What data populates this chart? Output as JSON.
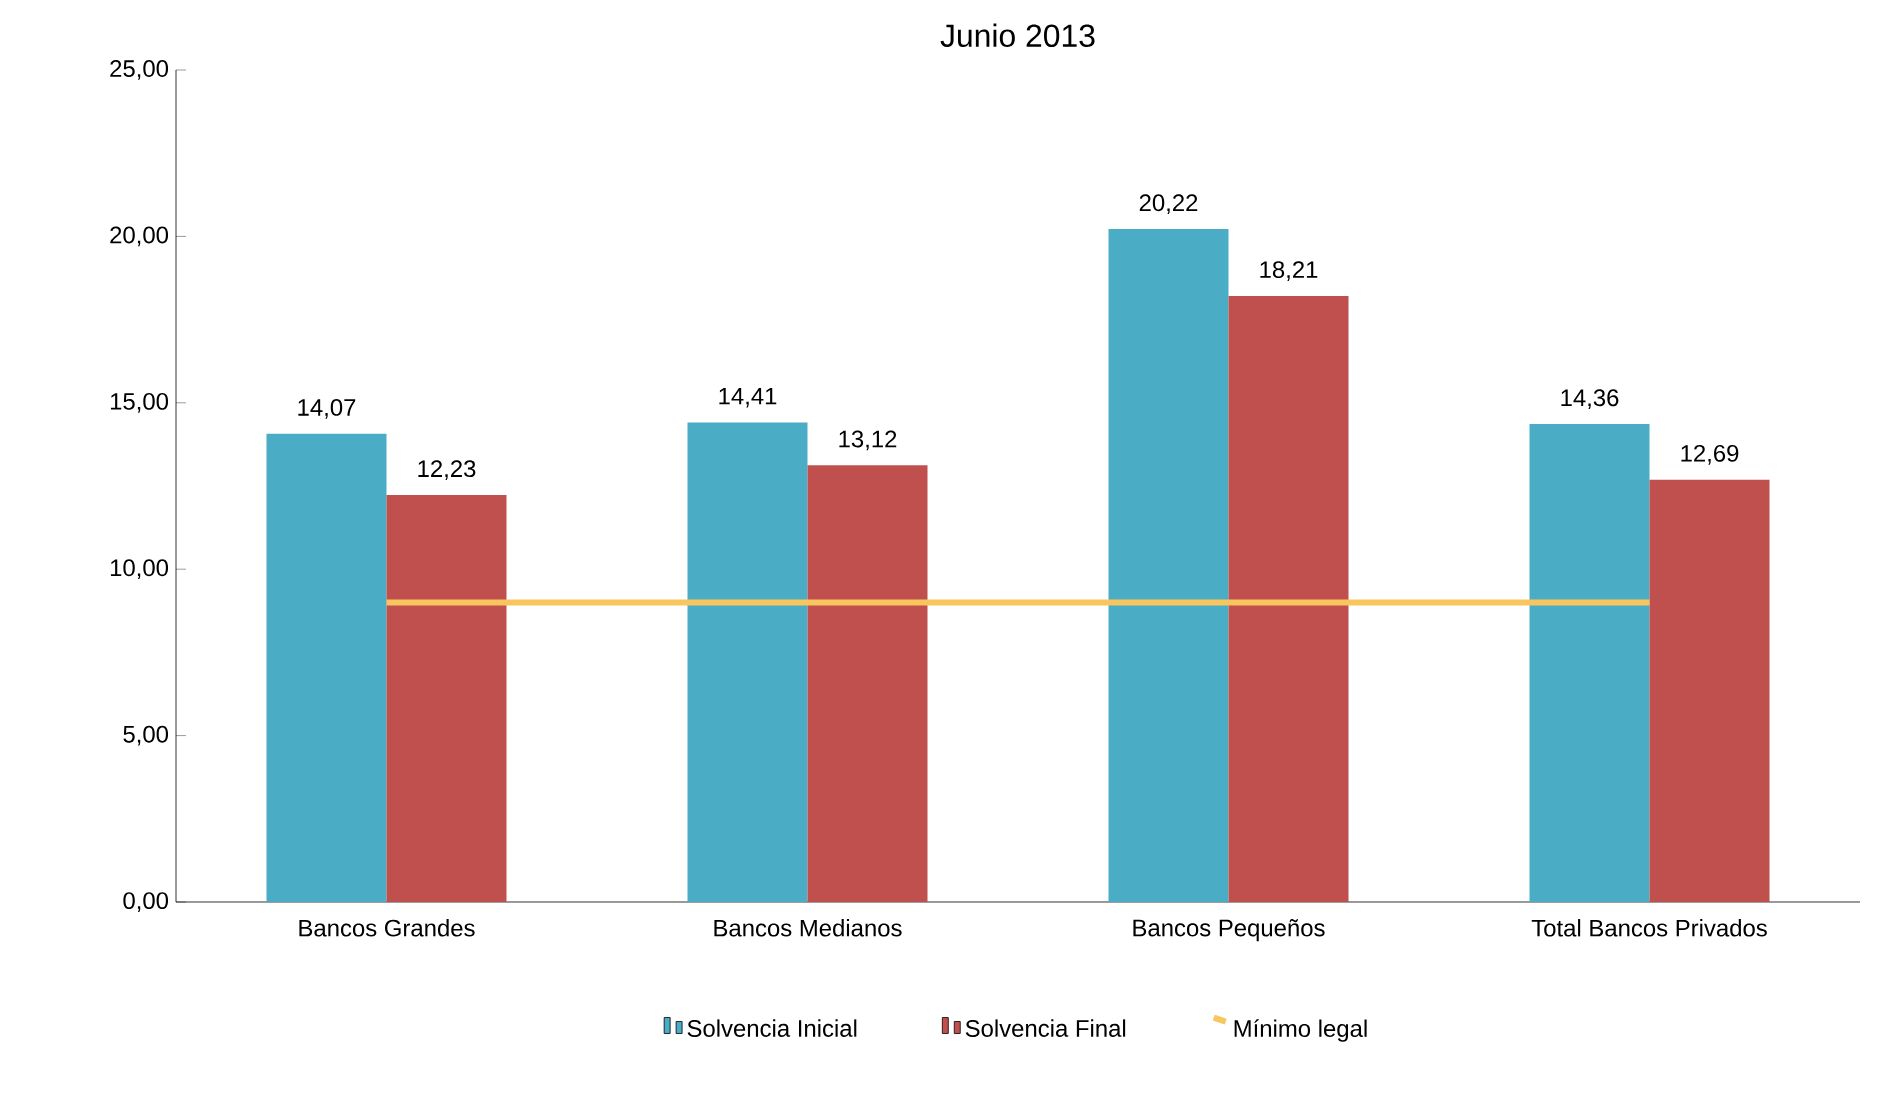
{
  "chart_data": {
    "type": "bar",
    "title": "Junio 2013",
    "categories": [
      "Bancos Grandes",
      "Bancos  Medianos",
      "Bancos  Pequeños",
      "Total Bancos Privados"
    ],
    "series": [
      {
        "name": "Solvencia Inicial",
        "color": "#4bacc6",
        "values": [
          14.07,
          14.41,
          20.22,
          14.36
        ],
        "value_labels": [
          "14,07",
          "14,41",
          "20,22",
          "14,36"
        ]
      },
      {
        "name": "Solvencia Final",
        "color": "#c0504d",
        "values": [
          12.23,
          13.12,
          18.21,
          12.69
        ],
        "value_labels": [
          "12,23",
          "13,12",
          "18,21",
          "12,69"
        ]
      },
      {
        "name": "Mínimo legal",
        "type": "line",
        "color": "#f9c55e",
        "values": [
          9,
          9,
          9,
          9
        ]
      }
    ],
    "ylim": [
      0,
      25
    ],
    "yticks": [
      {
        "value": 0,
        "label": "0,00"
      },
      {
        "value": 5,
        "label": "5,00"
      },
      {
        "value": 10,
        "label": "10,00"
      },
      {
        "value": 15,
        "label": "15,00"
      },
      {
        "value": 20,
        "label": "20,00"
      },
      {
        "value": 25,
        "label": "25,00"
      }
    ],
    "grid": false,
    "legend": "bottom",
    "marker": "none"
  }
}
